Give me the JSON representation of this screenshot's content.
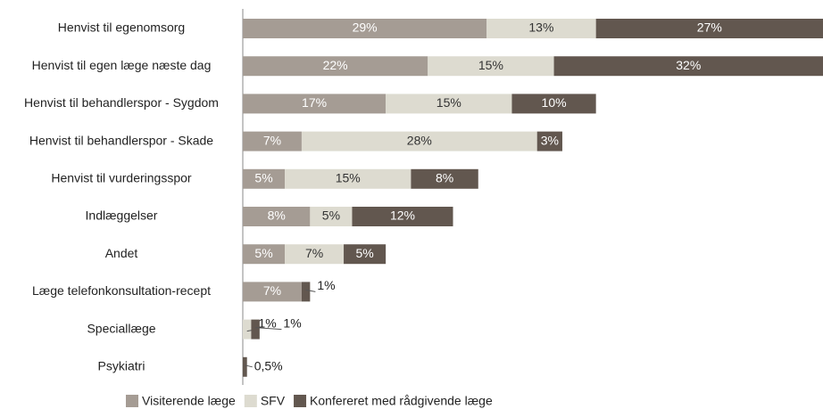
{
  "chart_data": {
    "type": "stacked-bar-horizontal",
    "categories": [
      "Henvist til egenomsorg",
      "Henvist til egen læge næste dag",
      "Henvist til behandlerspor - Sygdom",
      "Henvist til behandlerspor - Skade",
      "Henvist til vurderingsspor",
      "Indlæggelser",
      "Andet",
      "Læge telefonkonsultation-recept",
      "Speciallæge",
      "Psykiatri"
    ],
    "series": [
      {
        "name": "Visiterende læge",
        "color": "#a59c94",
        "values": [
          29,
          22,
          17,
          7,
          5,
          8,
          5,
          7,
          null,
          null
        ],
        "value_labels": [
          "29%",
          "22%",
          "17%",
          "7%",
          "5%",
          "8%",
          "5%",
          "7%",
          null,
          null
        ]
      },
      {
        "name": "SFV",
        "color": "#dddbd0",
        "values": [
          13,
          15,
          15,
          28,
          15,
          5,
          7,
          null,
          1,
          null
        ],
        "value_labels": [
          "13%",
          "15%",
          "15%",
          "28%",
          "15%",
          "5%",
          "7%",
          null,
          "1%",
          null
        ]
      },
      {
        "name": "Konfereret med rådgivende læge",
        "color": "#62574f",
        "values": [
          27,
          32,
          10,
          3,
          8,
          12,
          5,
          1,
          1,
          0.5
        ],
        "value_labels": [
          "27%",
          "32%",
          "10%",
          "3%",
          "8%",
          "12%",
          "5%",
          "1%",
          "1%",
          "0,5%"
        ]
      }
    ],
    "legend": "bottom"
  }
}
